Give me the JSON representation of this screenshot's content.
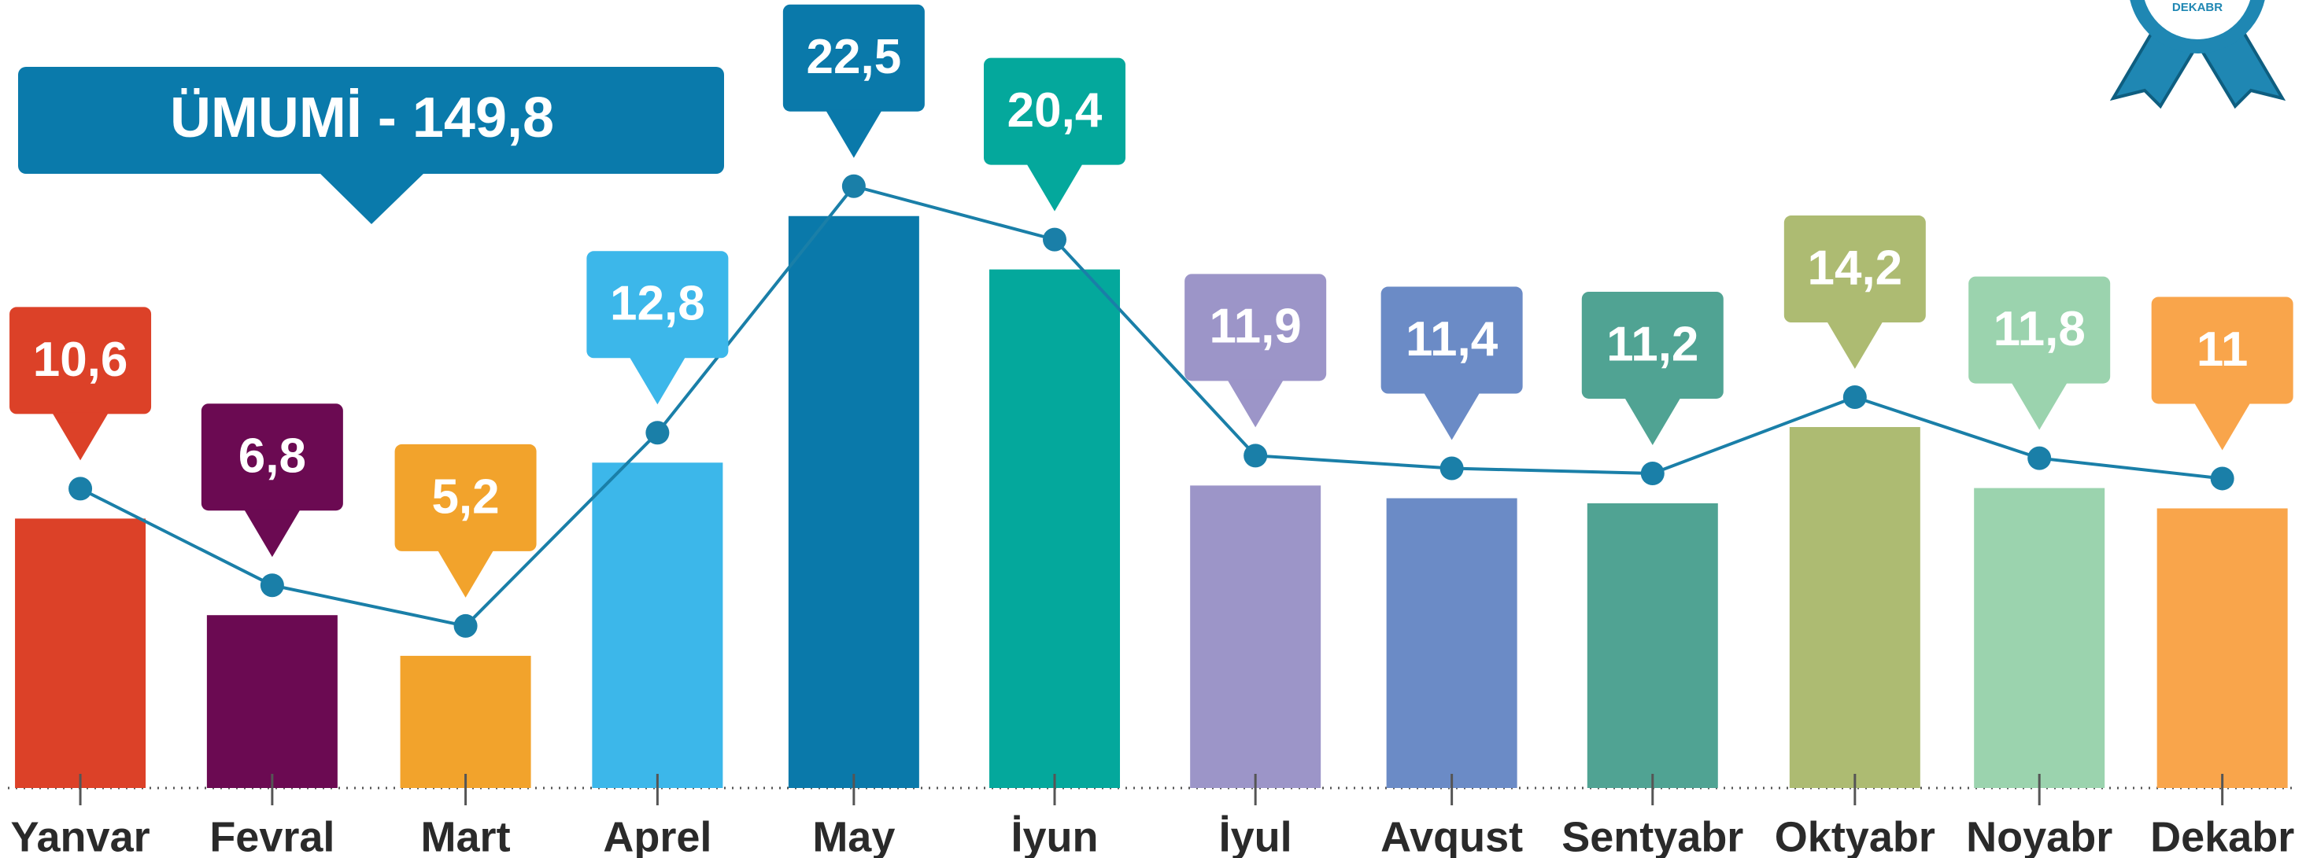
{
  "chart_data": {
    "type": "bar",
    "categories": [
      "Yanvar",
      "Fevral",
      "Mart",
      "Aprel",
      "May",
      "İyun",
      "İyul",
      "Avqust",
      "Sentyabr",
      "Oktyabr",
      "Noyabr",
      "Dekabr"
    ],
    "values": [
      10.6,
      6.8,
      5.2,
      12.8,
      22.5,
      20.4,
      11.9,
      11.4,
      11.2,
      14.2,
      11.8,
      11
    ],
    "value_labels": [
      "10,6",
      "6,8",
      "5,2",
      "12,8",
      "22,5",
      "20,4",
      "11,9",
      "11,4",
      "11,2",
      "14,2",
      "11,8",
      "11"
    ],
    "colors": [
      "#dc4128",
      "#6b0a52",
      "#f2a32c",
      "#3cb7ea",
      "#0a79aa",
      "#04a89c",
      "#9c95c8",
      "#6b8bc6",
      "#50a393",
      "#adbb72",
      "#9bd3ae",
      "#f9a54b"
    ],
    "line_color": "#1a7fa8",
    "ylim": [
      0,
      31
    ],
    "annotation": "ÜMUMİ - 149,8",
    "annotation_color": "#0a7aab",
    "badge": "DEKABR"
  }
}
